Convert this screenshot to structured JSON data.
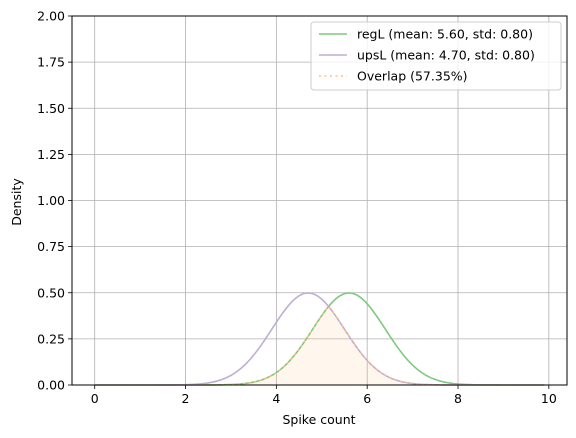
{
  "chart_data": {
    "type": "line",
    "xlabel": "Spike count",
    "ylabel": "Density",
    "xlim": [
      -0.5,
      10.4
    ],
    "ylim": [
      0,
      2.0
    ],
    "x_ticks": [
      0,
      2,
      4,
      6,
      8,
      10
    ],
    "y_ticks": [
      0.0,
      0.25,
      0.5,
      0.75,
      1.0,
      1.25,
      1.5,
      1.75,
      2.0
    ],
    "x_tick_labels": [
      "0",
      "2",
      "4",
      "6",
      "8",
      "10"
    ],
    "y_tick_labels": [
      "0.00",
      "0.25",
      "0.50",
      "0.75",
      "1.00",
      "1.25",
      "1.50",
      "1.75",
      "2.00"
    ],
    "grid": true,
    "legend_position": "top-right",
    "x_domain": [
      0,
      9.9
    ],
    "series": [
      {
        "name": "regL (mean: 5.60, std: 0.80)",
        "kind": "normal",
        "mean": 5.6,
        "std": 0.8,
        "color": "#7fc97f",
        "style": "solid"
      },
      {
        "name": "upsL (mean: 4.70, std: 0.80)",
        "kind": "normal",
        "mean": 4.7,
        "std": 0.8,
        "color": "#beaed4",
        "style": "solid"
      },
      {
        "name": "Overlap (57.35%)",
        "kind": "overlap",
        "color": "#fdc086",
        "style": "dotted",
        "fill_color": "#fdc086",
        "fill_opacity": 0.15
      }
    ]
  }
}
